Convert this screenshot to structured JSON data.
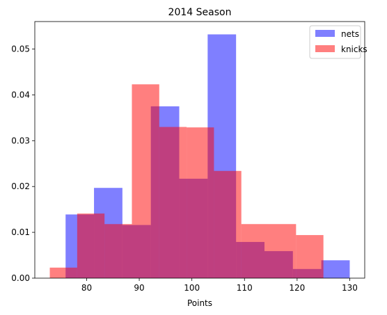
{
  "chart_data": {
    "type": "bar",
    "title": "2014 Season",
    "xlabel": "Points",
    "ylabel": "",
    "xlim": [
      70.15,
      132.85
    ],
    "ylim": [
      0,
      0.056
    ],
    "xticks": [
      80,
      90,
      100,
      110,
      120,
      130
    ],
    "yticks": [
      0.0,
      0.01,
      0.02,
      0.03,
      0.04,
      0.05
    ],
    "ytick_labels": [
      "0.00",
      "0.01",
      "0.02",
      "0.03",
      "0.04",
      "0.05"
    ],
    "grid": false,
    "legend_position": "top-right",
    "series": [
      {
        "name": "nets",
        "color": "#0000ff",
        "opacity": 0.5,
        "bin_edges": [
          76.0,
          81.4,
          86.8,
          92.2,
          97.6,
          103.0,
          108.4,
          113.8,
          119.2,
          124.6,
          130.0
        ],
        "values": [
          0.0139,
          0.0197,
          0.0116,
          0.0375,
          0.0217,
          0.0532,
          0.0079,
          0.0059,
          0.002,
          0.0039
        ]
      },
      {
        "name": "knicks",
        "color": "#ff0000",
        "opacity": 0.5,
        "bin_edges": [
          73.0,
          78.2,
          83.4,
          88.6,
          93.8,
          99.0,
          104.2,
          109.4,
          114.6,
          119.8,
          125.0
        ],
        "values": [
          0.0023,
          0.0141,
          0.0118,
          0.0423,
          0.033,
          0.0329,
          0.0234,
          0.0118,
          0.0118,
          0.0094
        ]
      }
    ]
  }
}
